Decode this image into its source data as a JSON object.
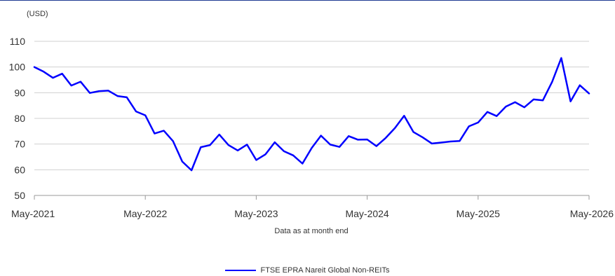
{
  "chart_data": {
    "type": "line",
    "unit_label": "(USD)",
    "xlabel": "Data as at month end",
    "ylim": [
      50,
      110
    ],
    "yticks": [
      50,
      60,
      70,
      80,
      90,
      100,
      110
    ],
    "xticks": [
      "May-2021",
      "May-2022",
      "May-2023",
      "May-2024",
      "May-2025",
      "May-2026"
    ],
    "x_range": [
      "2021-05",
      "2026-05"
    ],
    "grid": true,
    "legend_position": "bottom-center",
    "series": [
      {
        "name": "FTSE EPRA Nareit Global Non-REITs",
        "color": "#0000ff",
        "x": [
          "2021-05",
          "2021-06",
          "2021-07",
          "2021-08",
          "2021-09",
          "2021-10",
          "2021-11",
          "2021-12",
          "2022-01",
          "2022-02",
          "2022-03",
          "2022-04",
          "2022-05",
          "2022-06",
          "2022-07",
          "2022-08",
          "2022-09",
          "2022-10",
          "2022-11",
          "2022-12",
          "2023-01",
          "2023-02",
          "2023-03",
          "2023-04",
          "2023-05",
          "2023-06",
          "2023-07",
          "2023-08",
          "2023-09",
          "2023-10",
          "2023-11",
          "2023-12",
          "2024-01",
          "2024-02",
          "2024-03",
          "2024-04",
          "2024-05",
          "2024-06",
          "2024-07",
          "2024-08",
          "2024-09",
          "2024-10",
          "2024-11",
          "2024-12",
          "2025-01",
          "2025-02",
          "2025-03",
          "2025-04",
          "2025-05",
          "2025-06",
          "2025-07",
          "2025-08",
          "2025-09",
          "2025-10",
          "2025-11",
          "2025-12",
          "2026-01",
          "2026-02",
          "2026-03",
          "2026-04",
          "2026-05"
        ],
        "values": [
          100.0,
          98.2,
          95.8,
          97.4,
          92.8,
          94.3,
          89.9,
          90.6,
          90.8,
          88.7,
          88.2,
          82.7,
          81.2,
          74.1,
          75.2,
          71.1,
          63.2,
          59.8,
          68.8,
          69.6,
          73.7,
          69.6,
          67.5,
          69.8,
          63.8,
          66.0,
          70.7,
          67.2,
          65.6,
          62.4,
          68.5,
          73.3,
          69.8,
          68.9,
          73.1,
          71.7,
          71.8,
          69.2,
          72.4,
          76.2,
          81.0,
          74.7,
          72.6,
          70.2,
          70.6,
          71.0,
          71.2,
          76.9,
          78.4,
          82.5,
          80.9,
          84.6,
          86.3,
          84.3,
          87.4,
          87.0,
          94.2,
          103.5,
          86.6,
          92.9,
          89.7
        ]
      }
    ]
  }
}
